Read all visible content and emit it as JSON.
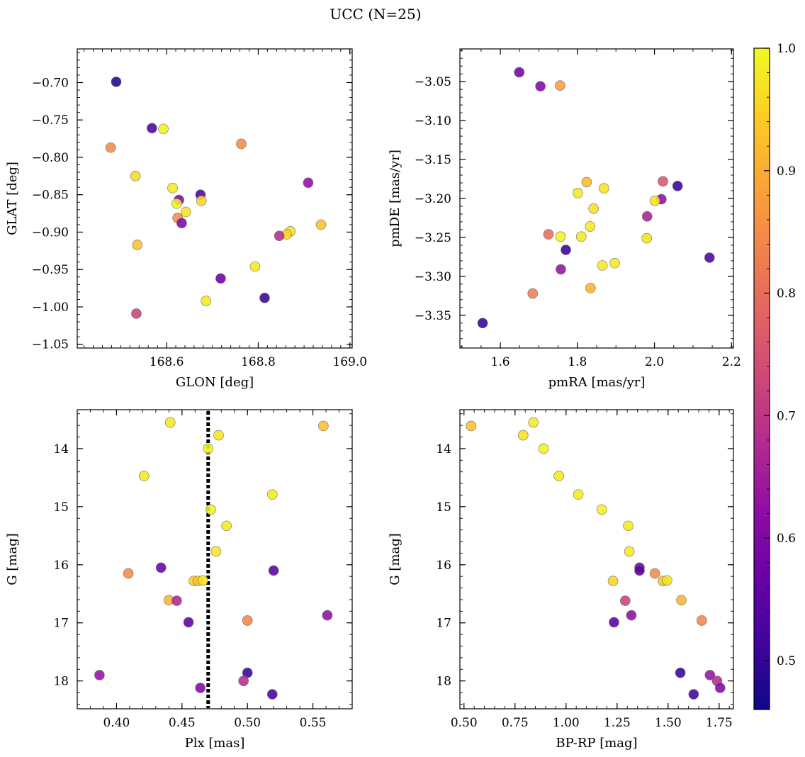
{
  "figure_title": "UCC (N=25)",
  "chart_data": [
    {
      "type": "scatter",
      "xlabel": "GLON [deg]",
      "ylabel": "GLAT [deg]",
      "xlim": [
        168.405,
        169.005
      ],
      "ylim": [
        -1.055,
        -0.655
      ],
      "yinvert": false,
      "x_ticks": [
        168.6,
        168.8,
        169.0
      ],
      "x_tick_labels": [
        "168.6",
        "168.8",
        "169.0"
      ],
      "y_ticks": [
        -1.05,
        -1.0,
        -0.95,
        -0.9,
        -0.85,
        -0.8,
        -0.75,
        -0.7
      ],
      "y_tick_labels": [
        "−1.05",
        "−1.00",
        "−0.95",
        "−0.90",
        "−0.85",
        "−0.80",
        "−0.75",
        "−0.70"
      ],
      "x_minor_step": 0.02,
      "y_minor_step": 0.01,
      "points": [
        {
          "x": 168.49,
          "y": -0.699,
          "c": 0.48
        },
        {
          "x": 168.568,
          "y": -0.761,
          "c": 0.53
        },
        {
          "x": 168.593,
          "y": -0.762,
          "c": 0.99
        },
        {
          "x": 168.478,
          "y": -0.787,
          "c": 0.85
        },
        {
          "x": 168.763,
          "y": -0.782,
          "c": 0.85
        },
        {
          "x": 168.532,
          "y": -0.825,
          "c": 0.96
        },
        {
          "x": 168.613,
          "y": -0.841,
          "c": 0.98
        },
        {
          "x": 168.674,
          "y": -0.85,
          "c": 0.53
        },
        {
          "x": 168.627,
          "y": -0.857,
          "c": 0.6
        },
        {
          "x": 168.676,
          "y": -0.858,
          "c": 0.96
        },
        {
          "x": 168.622,
          "y": -0.862,
          "c": 0.99
        },
        {
          "x": 168.642,
          "y": -0.873,
          "c": 0.97
        },
        {
          "x": 168.624,
          "y": -0.881,
          "c": 0.85
        },
        {
          "x": 168.633,
          "y": -0.888,
          "c": 0.6
        },
        {
          "x": 168.909,
          "y": -0.834,
          "c": 0.62
        },
        {
          "x": 168.937,
          "y": -0.89,
          "c": 0.93
        },
        {
          "x": 168.87,
          "y": -0.899,
          "c": 0.97
        },
        {
          "x": 168.862,
          "y": -0.903,
          "c": 0.95
        },
        {
          "x": 168.846,
          "y": -0.905,
          "c": 0.68
        },
        {
          "x": 168.536,
          "y": -0.917,
          "c": 0.93
        },
        {
          "x": 168.793,
          "y": -0.946,
          "c": 0.98
        },
        {
          "x": 168.718,
          "y": -0.962,
          "c": 0.57
        },
        {
          "x": 168.814,
          "y": -0.988,
          "c": 0.5
        },
        {
          "x": 168.686,
          "y": -0.992,
          "c": 0.98
        },
        {
          "x": 168.534,
          "y": -1.009,
          "c": 0.72
        }
      ]
    },
    {
      "type": "scatter",
      "xlabel": "pmRA [mas/yr]",
      "ylabel": "pmDE [mas/yr]",
      "xlim": [
        1.495,
        2.205
      ],
      "ylim": [
        -3.392,
        -3.008
      ],
      "yinvert": false,
      "x_ticks": [
        1.6,
        1.8,
        2.0,
        2.2
      ],
      "x_tick_labels": [
        "1.6",
        "1.8",
        "2.0",
        "2.2"
      ],
      "y_ticks": [
        -3.35,
        -3.3,
        -3.25,
        -3.2,
        -3.15,
        -3.1,
        -3.05
      ],
      "y_tick_labels": [
        "−3.35",
        "−3.30",
        "−3.25",
        "−3.20",
        "−3.15",
        "−3.10",
        "−3.05"
      ],
      "x_minor_step": 0.05,
      "y_minor_step": 0.01,
      "points": [
        {
          "x": 1.649,
          "y": -3.038,
          "c": 0.58
        },
        {
          "x": 1.704,
          "y": -3.056,
          "c": 0.6
        },
        {
          "x": 1.755,
          "y": -3.055,
          "c": 0.88
        },
        {
          "x": 1.824,
          "y": -3.179,
          "c": 0.92
        },
        {
          "x": 1.801,
          "y": -3.193,
          "c": 0.98
        },
        {
          "x": 1.869,
          "y": -3.187,
          "c": 0.97
        },
        {
          "x": 2.022,
          "y": -3.178,
          "c": 0.76
        },
        {
          "x": 2.06,
          "y": -3.184,
          "c": 0.5
        },
        {
          "x": 2.018,
          "y": -3.201,
          "c": 0.62
        },
        {
          "x": 2.001,
          "y": -3.203,
          "c": 0.97
        },
        {
          "x": 1.842,
          "y": -3.213,
          "c": 0.97
        },
        {
          "x": 1.981,
          "y": -3.223,
          "c": 0.66
        },
        {
          "x": 1.833,
          "y": -3.236,
          "c": 0.98
        },
        {
          "x": 1.725,
          "y": -3.246,
          "c": 0.8
        },
        {
          "x": 1.756,
          "y": -3.249,
          "c": 0.99
        },
        {
          "x": 1.81,
          "y": -3.249,
          "c": 0.98
        },
        {
          "x": 1.98,
          "y": -3.251,
          "c": 0.97
        },
        {
          "x": 1.77,
          "y": -3.266,
          "c": 0.5
        },
        {
          "x": 2.143,
          "y": -3.276,
          "c": 0.53
        },
        {
          "x": 1.897,
          "y": -3.283,
          "c": 0.98
        },
        {
          "x": 1.865,
          "y": -3.286,
          "c": 0.98
        },
        {
          "x": 1.757,
          "y": -3.291,
          "c": 0.63
        },
        {
          "x": 1.834,
          "y": -3.315,
          "c": 0.91
        },
        {
          "x": 1.684,
          "y": -3.322,
          "c": 0.83
        },
        {
          "x": 1.554,
          "y": -3.36,
          "c": 0.5
        }
      ]
    },
    {
      "type": "scatter",
      "xlabel": "Plx [mas]",
      "ylabel": "G [mag]",
      "xlim": [
        0.37,
        0.58
      ],
      "ylim": [
        18.48,
        13.33
      ],
      "yinvert": true,
      "x_ticks": [
        0.4,
        0.45,
        0.5,
        0.55
      ],
      "x_tick_labels": [
        "0.40",
        "0.45",
        "0.50",
        "0.55"
      ],
      "y_ticks": [
        14,
        15,
        16,
        17,
        18
      ],
      "y_tick_labels": [
        "14",
        "15",
        "16",
        "17",
        "18"
      ],
      "x_minor_step": 0.01,
      "y_minor_step": 0.2,
      "vline": {
        "x": 0.47,
        "style": "dotted"
      },
      "points": [
        {
          "x": 0.441,
          "y": 13.55,
          "c": 0.98
        },
        {
          "x": 0.558,
          "y": 13.61,
          "c": 0.93
        },
        {
          "x": 0.478,
          "y": 13.77,
          "c": 0.97
        },
        {
          "x": 0.47,
          "y": 14.0,
          "c": 0.99
        },
        {
          "x": 0.421,
          "y": 14.47,
          "c": 0.98
        },
        {
          "x": 0.519,
          "y": 14.79,
          "c": 0.98
        },
        {
          "x": 0.472,
          "y": 15.05,
          "c": 0.99
        },
        {
          "x": 0.484,
          "y": 15.33,
          "c": 0.98
        },
        {
          "x": 0.476,
          "y": 15.77,
          "c": 0.98
        },
        {
          "x": 0.434,
          "y": 16.05,
          "c": 0.57
        },
        {
          "x": 0.52,
          "y": 16.1,
          "c": 0.54
        },
        {
          "x": 0.409,
          "y": 16.15,
          "c": 0.85
        },
        {
          "x": 0.459,
          "y": 16.28,
          "c": 0.95
        },
        {
          "x": 0.462,
          "y": 16.28,
          "c": 0.93
        },
        {
          "x": 0.466,
          "y": 16.27,
          "c": 0.97
        },
        {
          "x": 0.44,
          "y": 16.61,
          "c": 0.91
        },
        {
          "x": 0.446,
          "y": 16.62,
          "c": 0.67
        },
        {
          "x": 0.5,
          "y": 16.96,
          "c": 0.84
        },
        {
          "x": 0.455,
          "y": 16.99,
          "c": 0.55
        },
        {
          "x": 0.561,
          "y": 16.87,
          "c": 0.62
        },
        {
          "x": 0.387,
          "y": 17.9,
          "c": 0.63
        },
        {
          "x": 0.5,
          "y": 17.86,
          "c": 0.5
        },
        {
          "x": 0.497,
          "y": 18.0,
          "c": 0.68
        },
        {
          "x": 0.464,
          "y": 18.12,
          "c": 0.6
        },
        {
          "x": 0.519,
          "y": 18.23,
          "c": 0.52
        }
      ]
    },
    {
      "type": "scatter",
      "xlabel": "BP-RP [mag]",
      "ylabel": "G [mag]",
      "xlim": [
        0.48,
        1.82
      ],
      "ylim": [
        18.48,
        13.33
      ],
      "yinvert": true,
      "x_ticks": [
        0.5,
        0.75,
        1.0,
        1.25,
        1.5,
        1.75
      ],
      "x_tick_labels": [
        "0.50",
        "0.75",
        "1.00",
        "1.25",
        "1.50",
        "1.75"
      ],
      "y_ticks": [
        14,
        15,
        16,
        17,
        18
      ],
      "y_tick_labels": [
        "14",
        "15",
        "16",
        "17",
        "18"
      ],
      "x_minor_step": 0.05,
      "y_minor_step": 0.2,
      "points": [
        {
          "x": 0.535,
          "y": 13.61,
          "c": 0.93
        },
        {
          "x": 0.84,
          "y": 13.55,
          "c": 0.98
        },
        {
          "x": 0.79,
          "y": 13.77,
          "c": 0.97
        },
        {
          "x": 0.89,
          "y": 14.0,
          "c": 0.99
        },
        {
          "x": 0.965,
          "y": 14.47,
          "c": 0.98
        },
        {
          "x": 1.06,
          "y": 14.79,
          "c": 0.98
        },
        {
          "x": 1.175,
          "y": 15.05,
          "c": 0.99
        },
        {
          "x": 1.305,
          "y": 15.33,
          "c": 0.98
        },
        {
          "x": 1.31,
          "y": 15.77,
          "c": 0.98
        },
        {
          "x": 1.36,
          "y": 16.05,
          "c": 0.57
        },
        {
          "x": 1.36,
          "y": 16.1,
          "c": 0.54
        },
        {
          "x": 1.435,
          "y": 16.15,
          "c": 0.85
        },
        {
          "x": 1.23,
          "y": 16.28,
          "c": 0.95
        },
        {
          "x": 1.475,
          "y": 16.28,
          "c": 0.93
        },
        {
          "x": 1.495,
          "y": 16.27,
          "c": 0.97
        },
        {
          "x": 1.29,
          "y": 16.62,
          "c": 0.72
        },
        {
          "x": 1.565,
          "y": 16.61,
          "c": 0.91
        },
        {
          "x": 1.665,
          "y": 16.96,
          "c": 0.84
        },
        {
          "x": 1.235,
          "y": 16.99,
          "c": 0.55
        },
        {
          "x": 1.32,
          "y": 16.87,
          "c": 0.62
        },
        {
          "x": 1.56,
          "y": 17.86,
          "c": 0.5
        },
        {
          "x": 1.705,
          "y": 17.9,
          "c": 0.63
        },
        {
          "x": 1.74,
          "y": 18.0,
          "c": 0.68
        },
        {
          "x": 1.755,
          "y": 18.12,
          "c": 0.6
        },
        {
          "x": 1.625,
          "y": 18.23,
          "c": 0.52
        }
      ]
    }
  ],
  "colorbar": {
    "colormap": "plasma",
    "range": [
      0.46,
      1.0
    ],
    "ticks": [
      0.5,
      0.6,
      0.7,
      0.8,
      0.9,
      1.0
    ],
    "tick_labels": [
      "0.5",
      "0.6",
      "0.7",
      "0.8",
      "0.9",
      "1.0"
    ],
    "minor_step": 0.02
  }
}
